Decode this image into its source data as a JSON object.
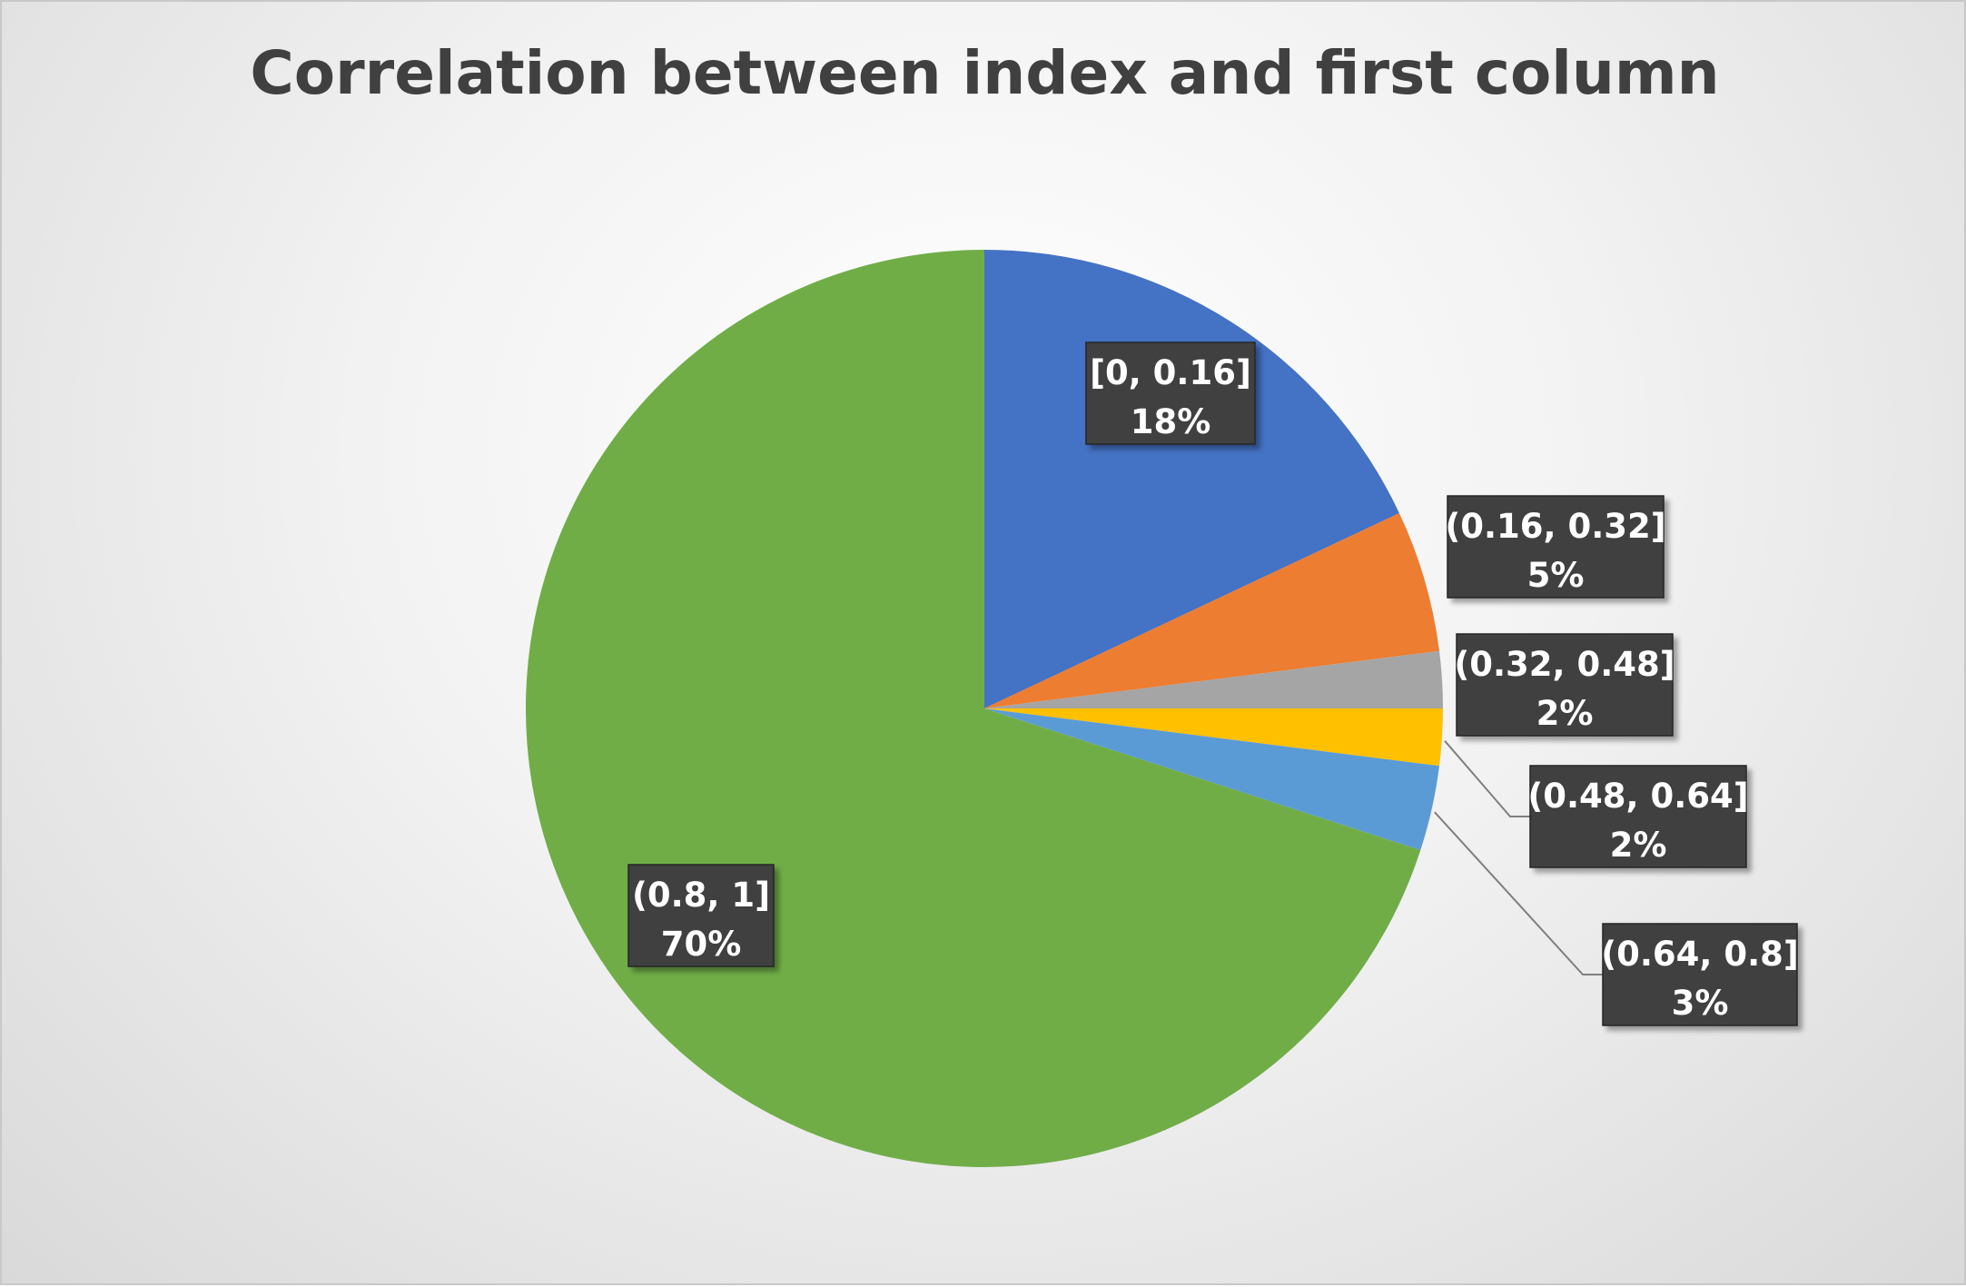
{
  "chart_data": {
    "type": "pie",
    "title": "Correlation between index and first column",
    "slices": [
      {
        "label": "[0, 0.16]",
        "value": 18,
        "value_label": "18%",
        "color": "#4472C4"
      },
      {
        "label": "(0.16, 0.32]",
        "value": 5,
        "value_label": "5%",
        "color": "#ED7D31"
      },
      {
        "label": "(0.32, 0.48]",
        "value": 2,
        "value_label": "2%",
        "color": "#A5A5A5"
      },
      {
        "label": "(0.48, 0.64]",
        "value": 2,
        "value_label": "2%",
        "color": "#FFC000"
      },
      {
        "label": "(0.64, 0.8]",
        "value": 3,
        "value_label": "3%",
        "color": "#5B9BD5"
      },
      {
        "label": "(0.8, 1]",
        "value": 70,
        "value_label": "70%",
        "color": "#70AD47"
      }
    ],
    "legend": "none",
    "data_labels": "category-and-percent"
  }
}
